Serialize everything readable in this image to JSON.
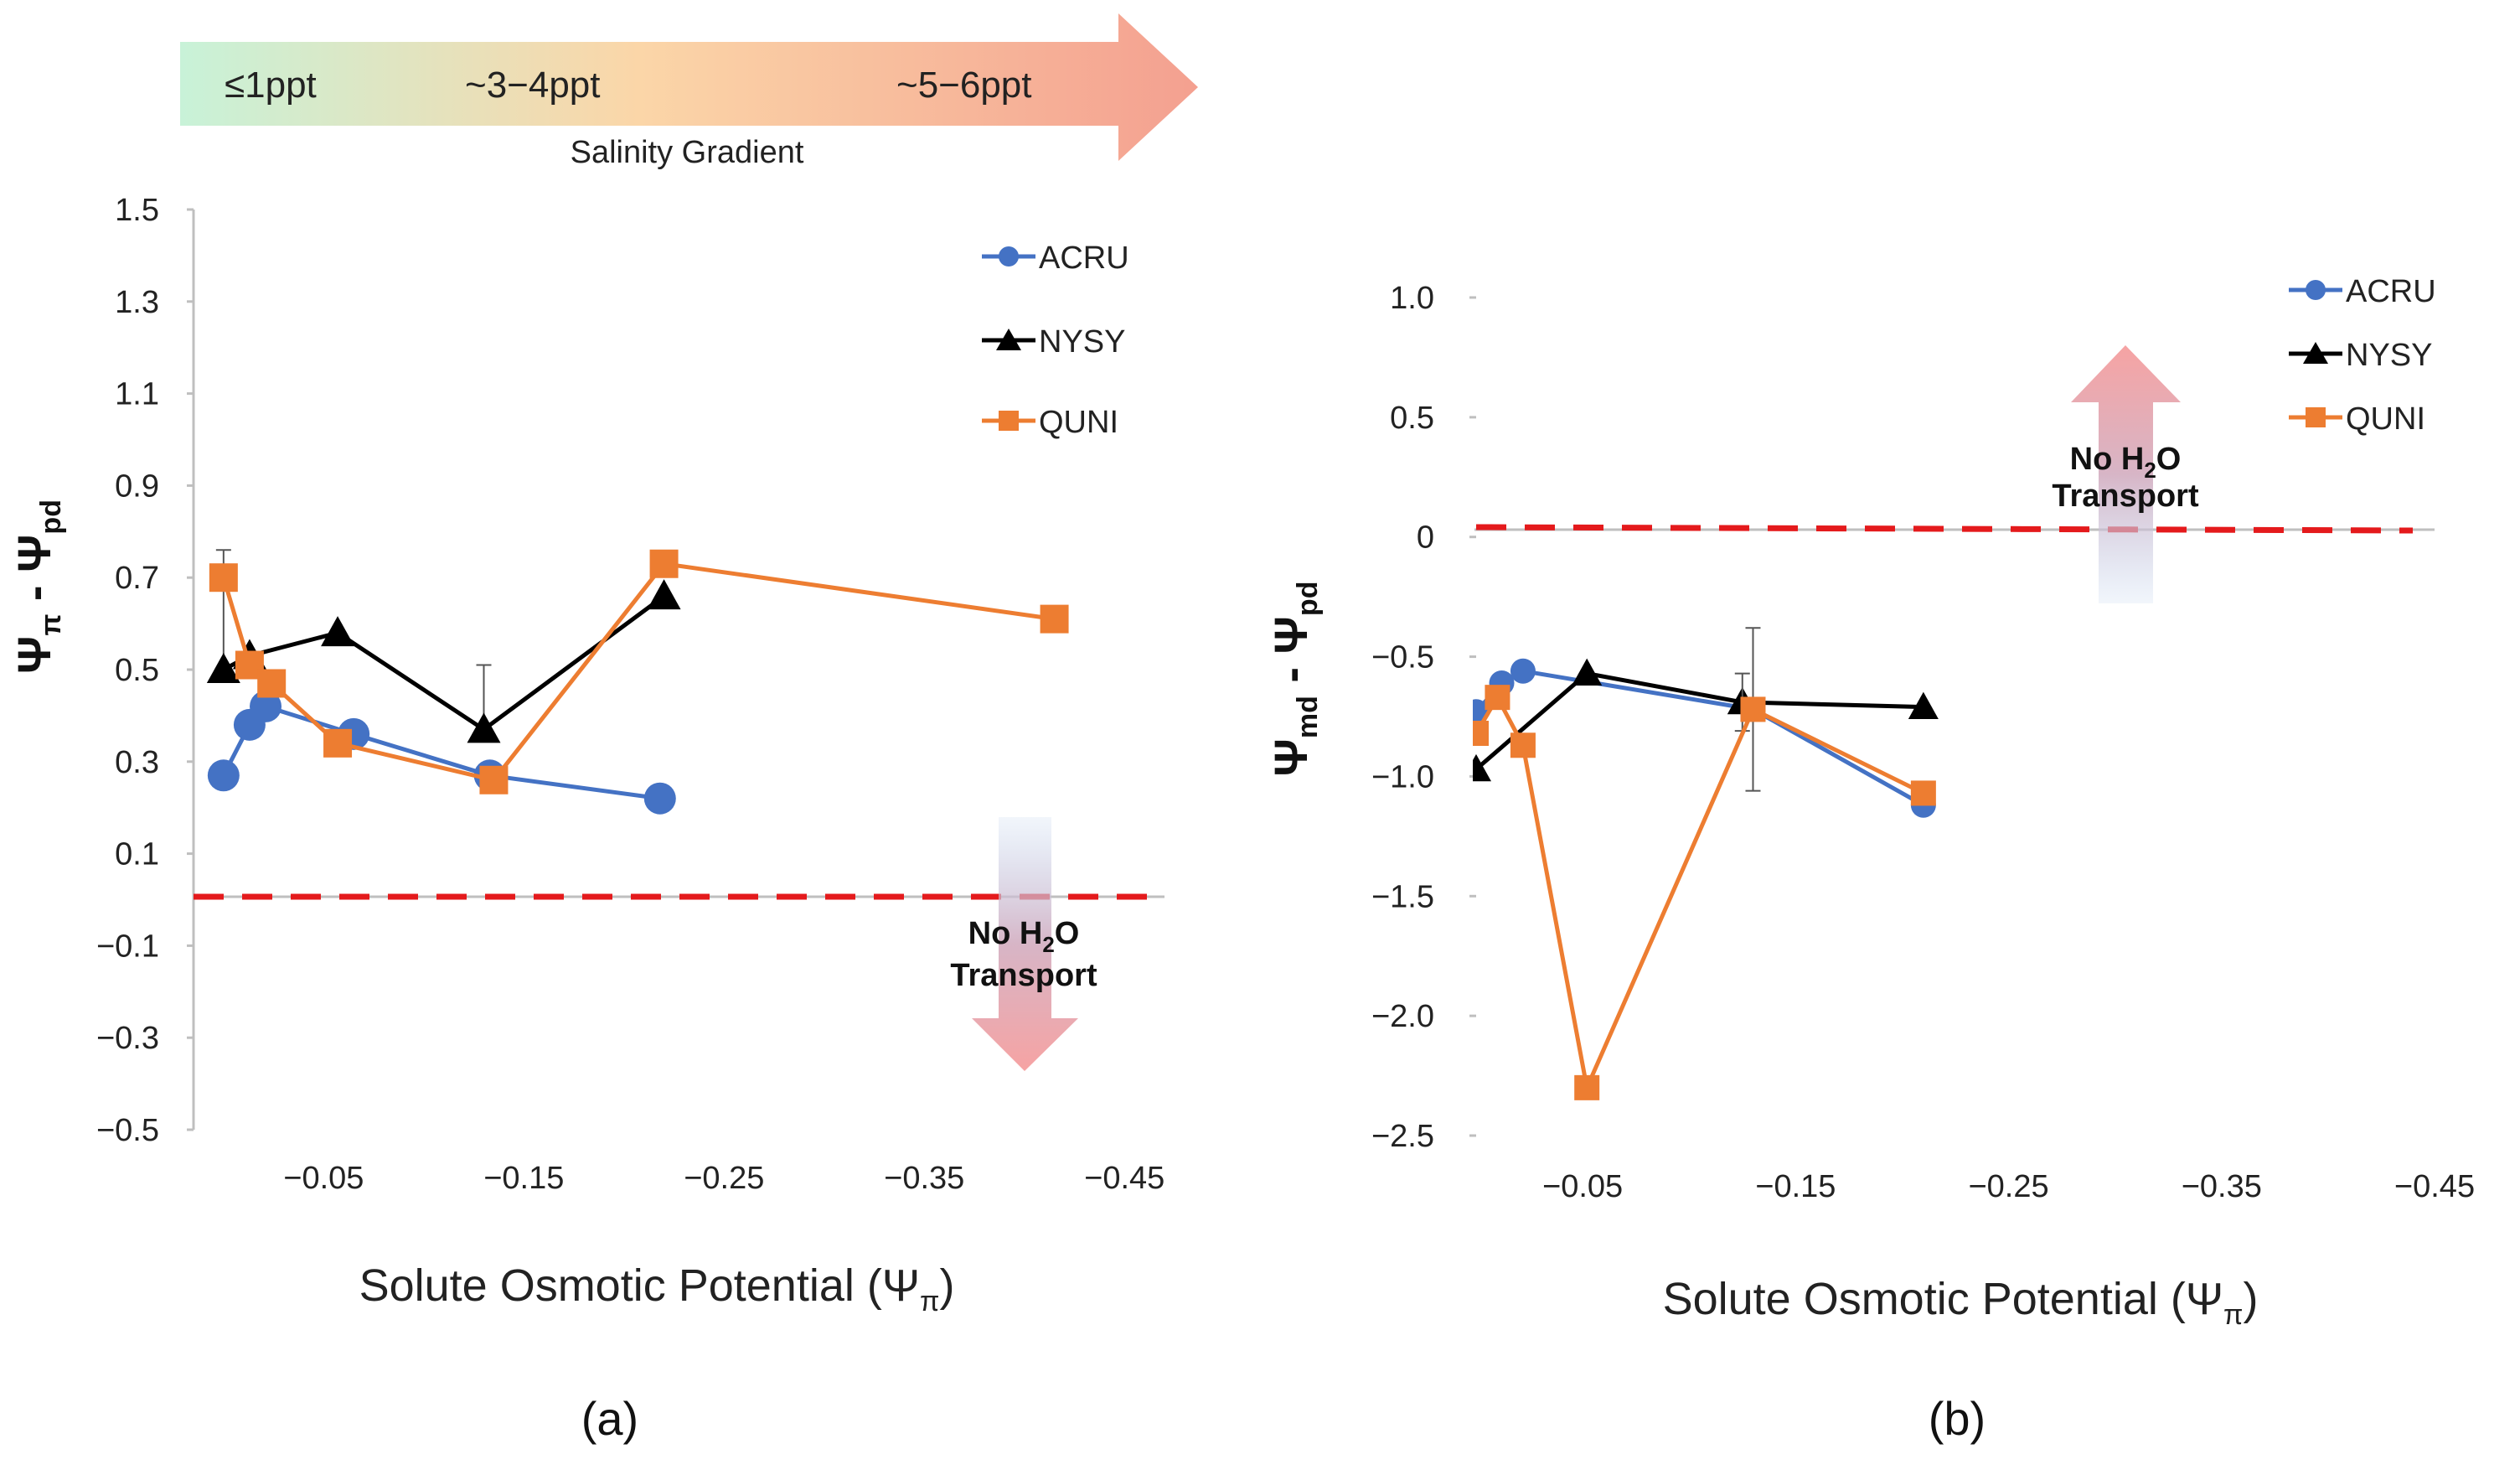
{
  "gradient": {
    "labels": [
      "≤1ppt",
      "~3−4ppt",
      "~5−6ppt"
    ],
    "title": "Salinity Gradient"
  },
  "chart_data": [
    {
      "type": "line",
      "panel_label": "(a)",
      "xlabel": "Solute Osmotic Potential (Ψπ)",
      "ylabel": "Ψπ - Ψpd",
      "xlim": [
        0.015,
        -0.47
      ],
      "ylim": [
        -0.5,
        1.5
      ],
      "x_ticks": [
        -0.05,
        -0.15,
        -0.25,
        -0.35,
        -0.45
      ],
      "y_ticks": [
        1.5,
        1.3,
        1.1,
        0.9,
        0.7,
        0.5,
        0.3,
        0.1,
        -0.1,
        -0.3,
        -0.5
      ],
      "x_tick_labels": [
        "−0.05",
        "−0.15",
        "−0.25",
        "−0.35",
        "−0.45"
      ],
      "y_tick_labels": [
        "1.5",
        "1.3",
        "1.1",
        "0.9",
        "0.7",
        "0.5",
        "0.3",
        "0.1",
        "−0.1",
        "−0.3",
        "−0.5"
      ],
      "reference_line": 0,
      "annotation": {
        "line1": "No H",
        "sub": "2",
        "line1_end": "O",
        "line2": "Transport",
        "arrow": "down"
      },
      "series": [
        {
          "name": "ACRU",
          "marker": "circle",
          "color": "#4472C4",
          "x": [
            0.0,
            -0.013,
            -0.021,
            -0.065,
            -0.133,
            -0.218
          ],
          "y": [
            0.27,
            0.38,
            0.42,
            0.36,
            0.27,
            0.22
          ]
        },
        {
          "name": "NYSY",
          "marker": "triangle",
          "color": "#000000",
          "x": [
            0.0,
            -0.013,
            -0.057,
            -0.13,
            -0.22
          ],
          "y": [
            0.5,
            0.53,
            0.58,
            0.37,
            0.66
          ],
          "error_bars": [
            {
              "x": 0.0,
              "low": 0.5,
              "high": 0.76
            },
            {
              "x": -0.13,
              "low": 0.37,
              "high": 0.51
            }
          ]
        },
        {
          "name": "QUNI",
          "marker": "square",
          "color": "#ED7D31",
          "x": [
            0.0,
            -0.013,
            -0.024,
            -0.057,
            -0.135,
            -0.22,
            -0.415
          ],
          "y": [
            0.7,
            0.51,
            0.47,
            0.34,
            0.26,
            0.73,
            0.61
          ]
        }
      ]
    },
    {
      "type": "line",
      "panel_label": "(b)",
      "xlabel": "Solute Osmotic Potential (Ψπ)",
      "ylabel": "Ψmd - Ψpd",
      "xlim": [
        0.0,
        -0.45
      ],
      "ylim": [
        -2.5,
        1.0
      ],
      "x_ticks": [
        -0.05,
        -0.15,
        -0.25,
        -0.35,
        -0.45
      ],
      "y_ticks": [
        1.0,
        0.5,
        0.0,
        -0.5,
        -1.0,
        -1.5,
        -2.0,
        -2.5
      ],
      "x_tick_labels": [
        "−0.05",
        "−0.15",
        "−0.25",
        "−0.35",
        "−0.45"
      ],
      "y_tick_labels": [
        "1.0",
        "0.5",
        "0",
        "−0.5",
        "−1.0",
        "−1.5",
        "−2.0",
        "−2.5"
      ],
      "reference_line": 0,
      "annotation": {
        "line1": "No H",
        "sub": "2",
        "line1_end": "O",
        "line2": "Transport",
        "arrow": "up"
      },
      "series": [
        {
          "name": "ACRU",
          "marker": "circle",
          "color": "#4472C4",
          "x": [
            0.0,
            -0.012,
            -0.022,
            -0.13,
            -0.21
          ],
          "y": [
            -0.73,
            -0.61,
            -0.56,
            -0.72,
            -1.12
          ]
        },
        {
          "name": "NYSY",
          "marker": "triangle",
          "color": "#000000",
          "x": [
            0.0,
            -0.052,
            -0.125,
            -0.21
          ],
          "y": [
            -0.97,
            -0.57,
            -0.69,
            -0.71
          ]
        },
        {
          "name": "QUNI",
          "marker": "square",
          "color": "#ED7D31",
          "x": [
            0.0,
            -0.01,
            -0.022,
            -0.052,
            -0.13,
            -0.21
          ],
          "y": [
            -0.82,
            -0.67,
            -0.87,
            -2.3,
            -0.72,
            -1.07
          ],
          "error_bars": [
            {
              "x": -0.13,
              "low": -1.06,
              "high": -0.38
            },
            {
              "x": -0.125,
              "low": -0.81,
              "high": -0.57
            }
          ]
        }
      ]
    }
  ]
}
